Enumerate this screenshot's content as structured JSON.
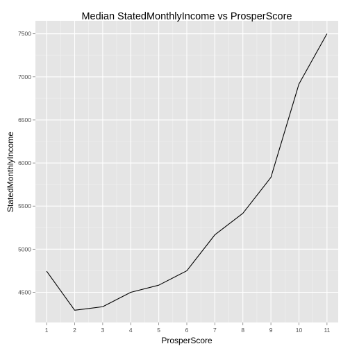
{
  "chart_data": {
    "type": "line",
    "title": "Median StatedMonthlyIncome vs ProsperScore",
    "xlabel": "ProsperScore",
    "ylabel": "StatedMonthlyIncome",
    "x": [
      1,
      2,
      3,
      4,
      5,
      6,
      7,
      8,
      9,
      10,
      11
    ],
    "series": [
      {
        "values": [
          4745,
          4292,
          4333,
          4500,
          4583,
          4750,
          5167,
          5417,
          5833,
          6917,
          7500
        ]
      }
    ],
    "xlim": [
      0.6,
      11.4
    ],
    "ylim": [
      4150,
      7650
    ],
    "xticks": [
      "1",
      "2",
      "3",
      "4",
      "5",
      "6",
      "7",
      "8",
      "9",
      "10",
      "11"
    ],
    "yticks": [
      "4500",
      "5000",
      "5500",
      "6000",
      "6500",
      "7000",
      "7500"
    ],
    "grid": true,
    "legend": "none",
    "colors": {
      "panel_background": "#e5e5e5",
      "grid_major": "#ffffff",
      "grid_minor": "#f2f2f2",
      "line": "#000000",
      "tick": "#7f7f7f"
    }
  }
}
